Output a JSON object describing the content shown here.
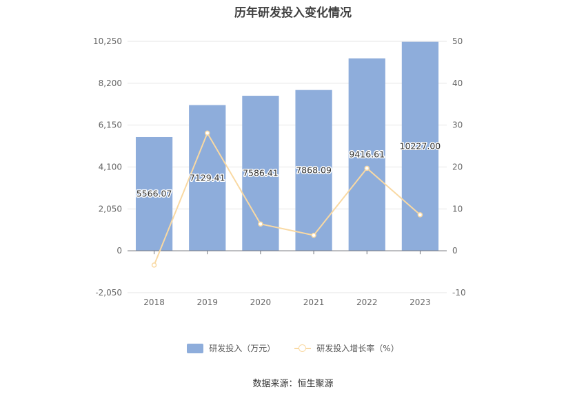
{
  "chart_data": {
    "type": "bar",
    "title": "历年研发投入变化情况",
    "categories": [
      "2018",
      "2019",
      "2020",
      "2021",
      "2022",
      "2023"
    ],
    "series": [
      {
        "name": "研发投入（万元）",
        "type": "bar",
        "axis": "left",
        "color": "#8eaddb",
        "values": [
          5566.07,
          7129.41,
          7586.41,
          7868.09,
          9416.61,
          10227.0
        ],
        "labels": [
          "5566.07",
          "7129.41",
          "7586.41",
          "7868.09",
          "9416.61",
          "10227.00"
        ]
      },
      {
        "name": "研发投入增长率（%）",
        "type": "line",
        "axis": "right",
        "color": "#f9d9a3",
        "values": [
          -3.4,
          28.1,
          6.4,
          3.7,
          19.7,
          8.6
        ]
      }
    ],
    "y_left": {
      "ylim": [
        -2050,
        10250
      ],
      "ticks": [
        "-2,050",
        "0",
        "2,050",
        "4,100",
        "6,150",
        "8,200",
        "10,250"
      ],
      "tick_values": [
        -2050,
        0,
        2050,
        4100,
        6150,
        8200,
        10250
      ]
    },
    "y_right": {
      "ylim": [
        -10,
        50
      ],
      "ticks": [
        "-10",
        "0",
        "10",
        "20",
        "30",
        "40",
        "50"
      ],
      "tick_values": [
        -10,
        0,
        10,
        20,
        30,
        40,
        50
      ]
    },
    "grid": true,
    "legend_position": "bottom"
  },
  "source": "数据来源：恒生聚源"
}
